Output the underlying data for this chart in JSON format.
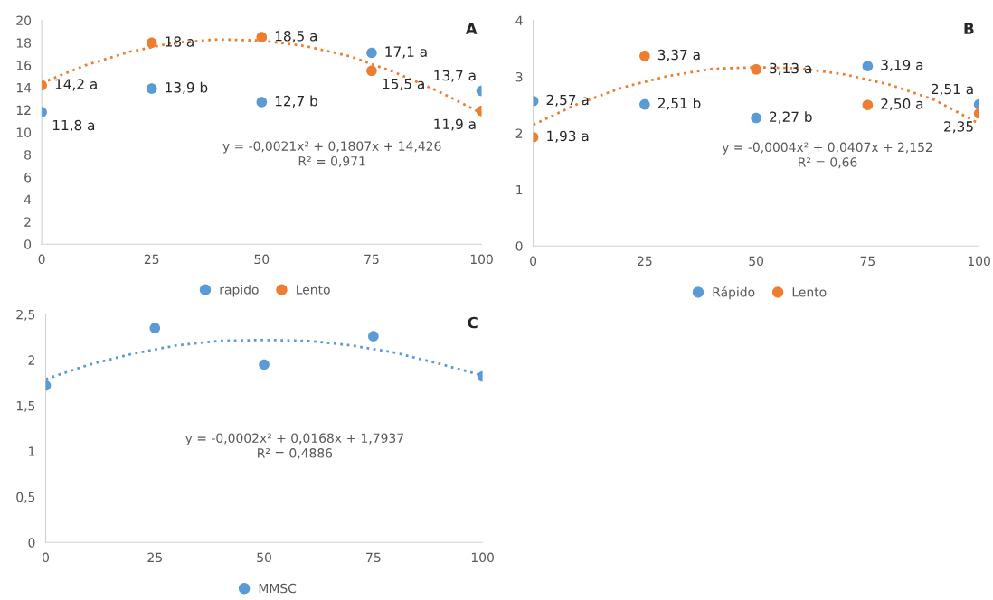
{
  "chart_data": [
    {
      "type": "scatter",
      "annotations": [
        "A",
        "y = -0,0021x² + 0,1807x + 14,426",
        "R² = 0,971"
      ],
      "xlim": [
        0,
        100
      ],
      "xticks": [
        0,
        25,
        50,
        75,
        100
      ],
      "ylim": [
        0,
        20
      ],
      "yticks": [
        0,
        2,
        4,
        6,
        8,
        10,
        12,
        14,
        16,
        18,
        20
      ],
      "x": [
        0,
        25,
        50,
        75,
        100
      ],
      "marker": "circle",
      "legend": "bottom",
      "grid": false,
      "series": [
        {
          "name": "rapido",
          "color": "#5b9bd5",
          "values": [
            11.8,
            13.9,
            12.7,
            17.1,
            13.7
          ],
          "value_labels": [
            "11,8 a",
            "13,9 b",
            "12,7 b",
            "17,1 a",
            "13,7 a"
          ]
        },
        {
          "name": "Lento",
          "color": "#ed7d31",
          "values": [
            14.2,
            18,
            18.5,
            15.5,
            11.9
          ],
          "value_labels": [
            "14,2 a",
            "18 a",
            "18,5 a",
            "15,5 a",
            "11,9 a"
          ]
        },
        {
          "type": "line",
          "marker": "none",
          "line_style": "dotted",
          "color": "#ed7d31",
          "x": [
            0,
            10,
            20,
            30,
            40,
            50,
            60,
            70,
            80,
            90,
            100
          ],
          "values": [
            14.4,
            16.0,
            17.2,
            18.0,
            18.3,
            18.2,
            17.7,
            16.8,
            15.4,
            13.7,
            11.7
          ]
        }
      ]
    },
    {
      "type": "scatter",
      "annotations": [
        "B",
        "y = -0,0004x² + 0,0407x + 2,152",
        "R² = 0,66"
      ],
      "xlim": [
        0,
        100
      ],
      "xticks": [
        0,
        25,
        50,
        75,
        100
      ],
      "ylim": [
        0,
        4
      ],
      "yticks": [
        0,
        1,
        2,
        3,
        4
      ],
      "x": [
        0,
        25,
        50,
        75,
        100
      ],
      "marker": "circle",
      "legend": "bottom",
      "grid": false,
      "series": [
        {
          "name": "Rápido",
          "color": "#5b9bd5",
          "values": [
            2.57,
            2.51,
            2.27,
            3.19,
            2.51
          ],
          "value_labels": [
            "2,57 a",
            "2,51 b",
            "2,27 b",
            "3,19 a",
            "2,51 a"
          ]
        },
        {
          "name": "Lento",
          "color": "#ed7d31",
          "values": [
            1.93,
            3.37,
            3.13,
            2.5,
            2.35
          ],
          "value_labels": [
            "1,93 a",
            "3,37 a",
            "3,13 a",
            "2,50 a",
            "2,35"
          ]
        },
        {
          "type": "line",
          "marker": "none",
          "line_style": "dotted",
          "color": "#ed7d31",
          "x": [
            0,
            10,
            20,
            30,
            40,
            50,
            60,
            70,
            80,
            90,
            100
          ],
          "values": [
            2.15,
            2.52,
            2.81,
            3.01,
            3.14,
            3.17,
            3.15,
            3.04,
            2.86,
            2.59,
            2.17
          ]
        }
      ]
    },
    {
      "type": "scatter",
      "annotations": [
        "C",
        "y = -0,0002x² + 0,0168x + 1,7937",
        "R² = 0,4886"
      ],
      "xlim": [
        0,
        100
      ],
      "xticks": [
        0,
        25,
        50,
        75,
        100
      ],
      "ylim": [
        0,
        2.5
      ],
      "yticks": [
        0,
        {
          "value": 0.5,
          "label": "0,5"
        },
        1,
        {
          "value": 1.5,
          "label": "1,5"
        },
        2,
        {
          "value": 2.5,
          "label": "2,5"
        }
      ],
      "x": [
        0,
        25,
        50,
        75,
        100
      ],
      "marker": "circle",
      "legend": "bottom",
      "grid": false,
      "series": [
        {
          "name": "MMSC",
          "color": "#5b9bd5",
          "values": [
            1.72,
            2.35,
            1.95,
            2.26,
            1.82
          ]
        },
        {
          "type": "line",
          "marker": "none",
          "line_style": "dotted",
          "color": "#5b9bd5",
          "x": [
            0,
            10,
            20,
            30,
            40,
            50,
            60,
            70,
            80,
            90,
            100
          ],
          "values": [
            1.79,
            1.95,
            2.07,
            2.16,
            2.21,
            2.22,
            2.21,
            2.16,
            2.08,
            1.96,
            1.83
          ]
        }
      ]
    }
  ]
}
